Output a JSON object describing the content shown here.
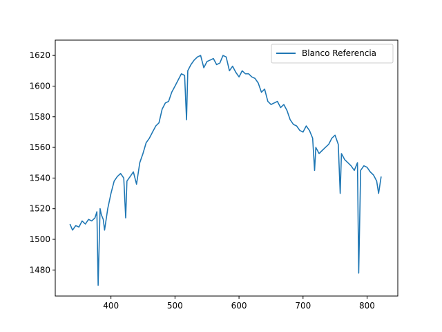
{
  "chart_data": {
    "type": "line",
    "title": "",
    "xlabel": "",
    "ylabel": "",
    "xlim": [
      313,
      848
    ],
    "ylim": [
      1463,
      1630
    ],
    "xticks": [
      400,
      500,
      600,
      700,
      800
    ],
    "yticks": [
      1480,
      1500,
      1520,
      1540,
      1560,
      1580,
      1600,
      1620
    ],
    "grid": false,
    "legend_position": "upper right",
    "series": [
      {
        "name": "Blanco Referencia",
        "color": "#1f77b4",
        "x": [
          336,
          340,
          345,
          350,
          355,
          360,
          365,
          370,
          375,
          378,
          380,
          383,
          385,
          388,
          390,
          395,
          400,
          405,
          410,
          415,
          420,
          423,
          425,
          430,
          435,
          440,
          445,
          450,
          455,
          460,
          465,
          470,
          475,
          480,
          485,
          490,
          495,
          500,
          505,
          510,
          515,
          518,
          520,
          525,
          530,
          535,
          540,
          545,
          550,
          555,
          560,
          565,
          570,
          575,
          580,
          585,
          590,
          595,
          600,
          605,
          610,
          615,
          620,
          625,
          630,
          635,
          640,
          645,
          650,
          655,
          660,
          665,
          670,
          675,
          680,
          685,
          690,
          695,
          700,
          705,
          710,
          715,
          718,
          720,
          725,
          730,
          735,
          740,
          745,
          750,
          755,
          758,
          760,
          765,
          770,
          775,
          780,
          785,
          787,
          790,
          795,
          800,
          805,
          810,
          815,
          818,
          822
        ],
        "y": [
          1510,
          1506,
          1509,
          1508,
          1512,
          1510,
          1513,
          1512,
          1514,
          1518,
          1470,
          1520,
          1516,
          1513,
          1506,
          1520,
          1530,
          1538,
          1541,
          1543,
          1540,
          1514,
          1538,
          1541,
          1544,
          1536,
          1550,
          1556,
          1563,
          1566,
          1570,
          1574,
          1576,
          1585,
          1589,
          1590,
          1596,
          1600,
          1604,
          1608,
          1607,
          1578,
          1610,
          1614,
          1617,
          1619,
          1620,
          1612,
          1616,
          1617,
          1618,
          1614,
          1615,
          1620,
          1619,
          1610,
          1613,
          1609,
          1606,
          1610,
          1608,
          1608,
          1606,
          1605,
          1602,
          1596,
          1598,
          1590,
          1588,
          1589,
          1590,
          1586,
          1588,
          1584,
          1578,
          1575,
          1574,
          1571,
          1570,
          1574,
          1571,
          1566,
          1545,
          1560,
          1556,
          1558,
          1560,
          1562,
          1566,
          1568,
          1562,
          1530,
          1556,
          1552,
          1550,
          1548,
          1545,
          1550,
          1478,
          1545,
          1548,
          1547,
          1544,
          1542,
          1538,
          1530,
          1541
        ]
      }
    ]
  }
}
